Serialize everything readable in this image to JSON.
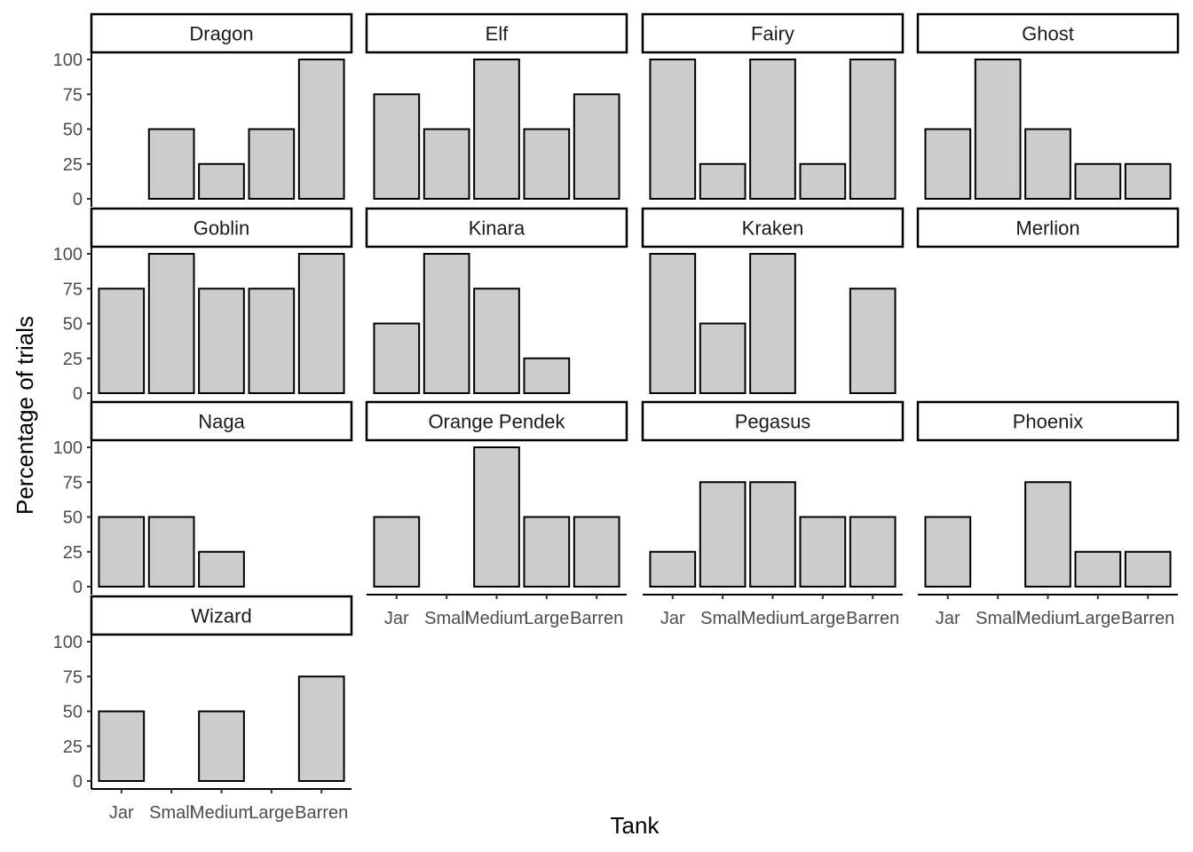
{
  "chart_data": {
    "type": "bar",
    "xlabel": "Tank",
    "ylabel": "Percentage of trials",
    "categories": [
      "Jar",
      "Small",
      "Medium",
      "Large",
      "Barren"
    ],
    "ylim": [
      0,
      100
    ],
    "yticks": [
      0,
      25,
      50,
      75,
      100
    ],
    "grid": false,
    "bar_color": "#cccccc",
    "bar_edge_color": "#000000",
    "panels": [
      {
        "name": "Dragon",
        "values": [
          0,
          50,
          25,
          50,
          100
        ]
      },
      {
        "name": "Elf",
        "values": [
          75,
          50,
          100,
          50,
          75
        ]
      },
      {
        "name": "Fairy",
        "values": [
          100,
          25,
          100,
          25,
          100
        ]
      },
      {
        "name": "Ghost",
        "values": [
          50,
          100,
          50,
          25,
          25
        ]
      },
      {
        "name": "Goblin",
        "values": [
          75,
          100,
          75,
          75,
          100
        ]
      },
      {
        "name": "Kinara",
        "values": [
          50,
          100,
          75,
          25,
          0
        ]
      },
      {
        "name": "Kraken",
        "values": [
          100,
          50,
          100,
          0,
          75
        ]
      },
      {
        "name": "Merlion",
        "values": [
          0,
          0,
          0,
          0,
          null
        ]
      },
      {
        "name": "Naga",
        "values": [
          50,
          50,
          25,
          0,
          0
        ]
      },
      {
        "name": "Orange Pendek",
        "values": [
          50,
          0,
          100,
          50,
          50
        ]
      },
      {
        "name": "Pegasus",
        "values": [
          25,
          75,
          75,
          50,
          50
        ]
      },
      {
        "name": "Phoenix",
        "values": [
          50,
          0,
          75,
          25,
          25
        ]
      },
      {
        "name": "Wizard",
        "values": [
          50,
          0,
          50,
          0,
          75
        ]
      }
    ]
  }
}
